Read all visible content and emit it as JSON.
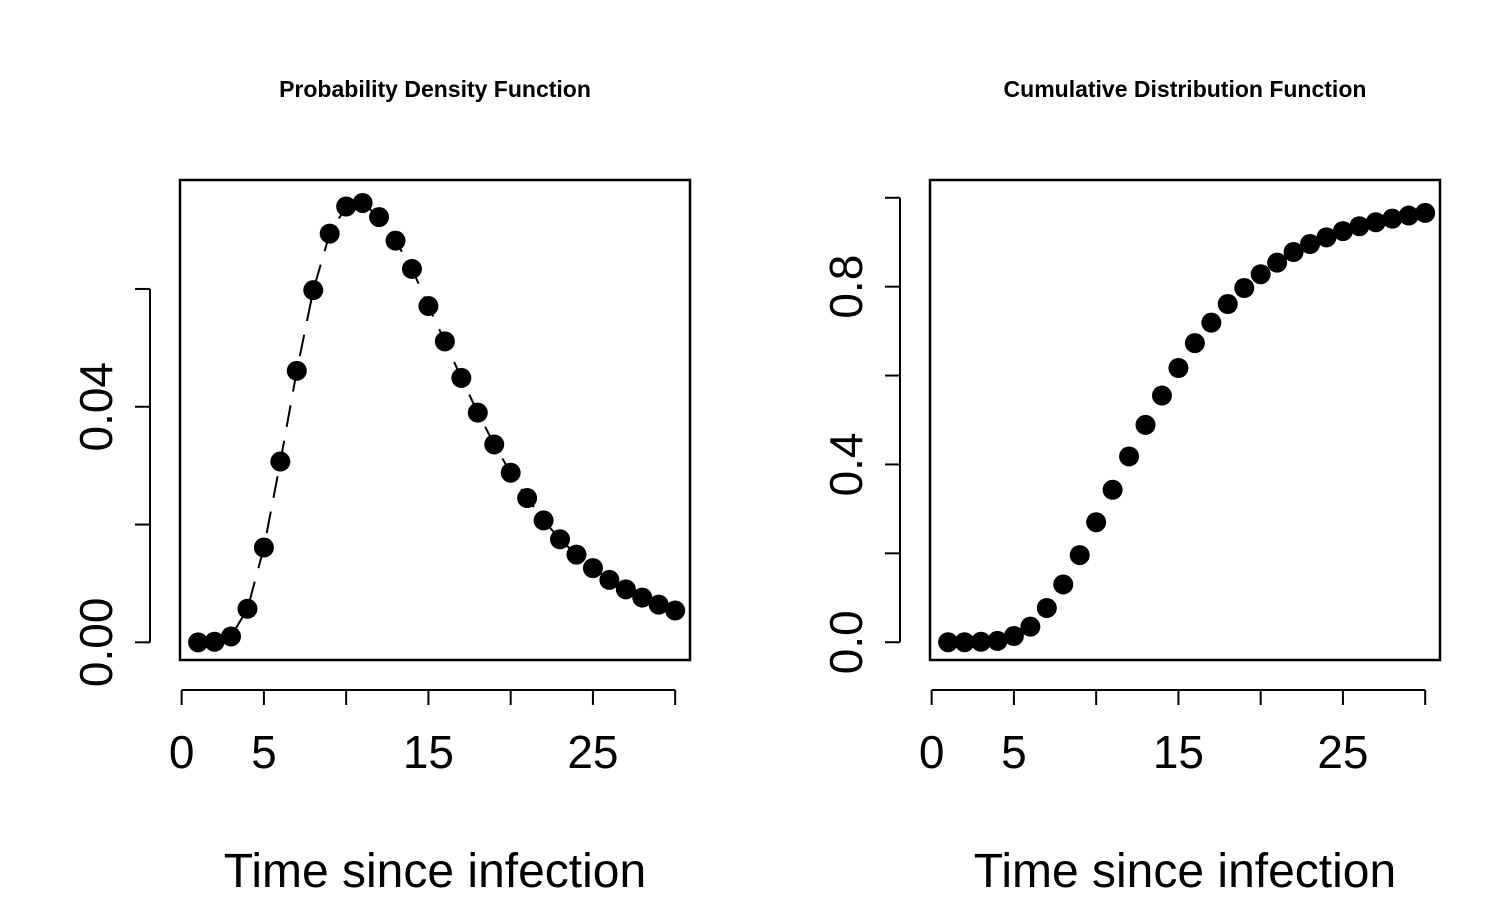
{
  "chart_data": [
    {
      "type": "scatter",
      "title": "Probability Density Function",
      "xlabel": "Time since infection",
      "ylabel": "",
      "xticks": [
        0,
        5,
        10,
        15,
        20,
        25,
        30
      ],
      "xtick_labels": [
        "0",
        "5",
        "",
        "15",
        "",
        "25",
        ""
      ],
      "yticks": [
        0.0,
        0.02,
        0.04,
        0.06
      ],
      "ytick_labels": [
        "0.00",
        "",
        "0.04",
        ""
      ],
      "xlim": [
        -0.1,
        30.9
      ],
      "ylim": [
        -0.003,
        0.0785
      ],
      "grid": false,
      "series": [
        {
          "x": [
            1,
            2,
            3,
            4,
            5,
            6,
            7,
            8,
            9,
            10,
            11,
            12,
            13,
            14,
            15,
            16,
            17,
            18,
            19,
            20,
            21,
            22,
            23,
            24,
            25,
            26,
            27,
            28,
            29,
            30
          ],
          "y": [
            0.0,
            0.0001,
            0.001,
            0.0057,
            0.0161,
            0.0307,
            0.0461,
            0.0598,
            0.0694,
            0.074,
            0.0746,
            0.0722,
            0.0682,
            0.0634,
            0.0571,
            0.0511,
            0.0449,
            0.039,
            0.0336,
            0.0288,
            0.0245,
            0.0207,
            0.0175,
            0.0149,
            0.0126,
            0.0106,
            0.009,
            0.0076,
            0.0064,
            0.0054
          ]
        }
      ]
    },
    {
      "type": "scatter",
      "title": "Cumulative Distribution Function",
      "xlabel": "Time since infection",
      "ylabel": "",
      "xticks": [
        0,
        5,
        10,
        15,
        20,
        25,
        30
      ],
      "xtick_labels": [
        "0",
        "5",
        "",
        "15",
        "",
        "25",
        ""
      ],
      "yticks": [
        0.0,
        0.2,
        0.4,
        0.6,
        0.8,
        1.0
      ],
      "ytick_labels": [
        "0.0",
        "",
        "0.4",
        "",
        "0.8",
        ""
      ],
      "xlim": [
        -0.1,
        30.9
      ],
      "ylim": [
        -0.04,
        1.04
      ],
      "grid": false,
      "series": [
        {
          "x": [
            1,
            2,
            3,
            4,
            5,
            6,
            7,
            8,
            9,
            10,
            11,
            12,
            13,
            14,
            15,
            16,
            17,
            18,
            19,
            20,
            21,
            22,
            23,
            24,
            25,
            26,
            27,
            28,
            29,
            30
          ],
          "y": [
            0.0,
            0.0,
            0.001,
            0.003,
            0.014,
            0.035,
            0.077,
            0.13,
            0.196,
            0.27,
            0.343,
            0.418,
            0.489,
            0.555,
            0.617,
            0.673,
            0.719,
            0.761,
            0.797,
            0.828,
            0.854,
            0.878,
            0.896,
            0.911,
            0.925,
            0.936,
            0.945,
            0.953,
            0.96,
            0.966
          ]
        }
      ]
    }
  ]
}
